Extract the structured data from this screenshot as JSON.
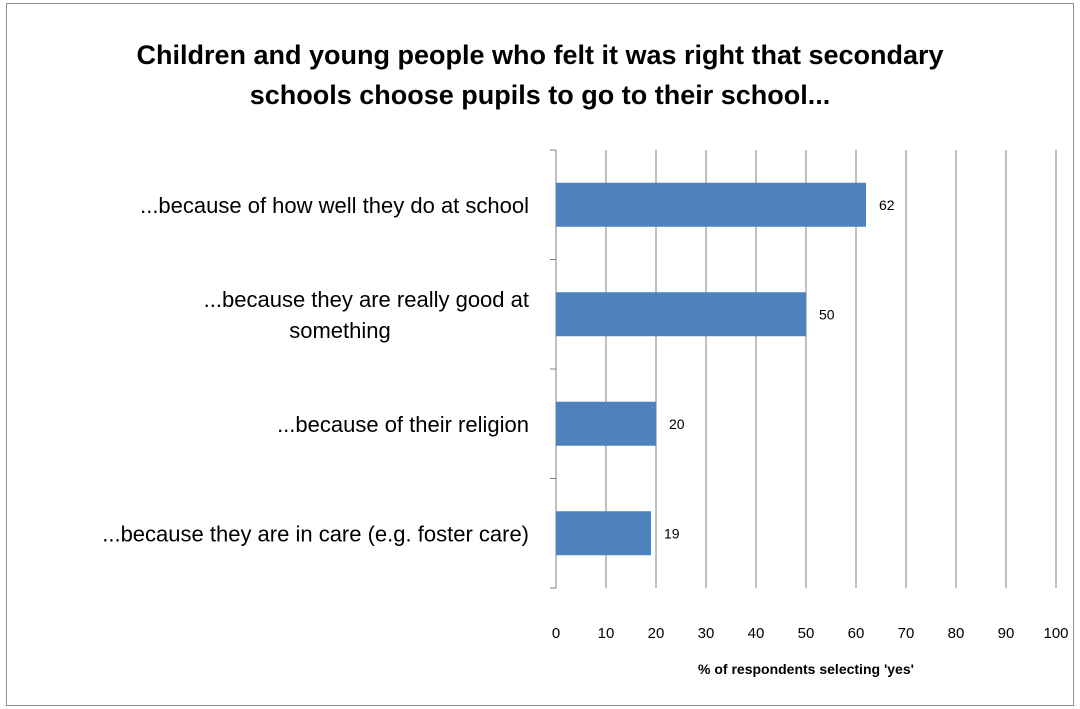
{
  "chart_data": {
    "type": "bar",
    "orientation": "horizontal",
    "title_lines": [
      "Children and young people who felt it was right that secondary",
      "schools choose pupils to go to their school..."
    ],
    "categories": [
      [
        "...because of how well they do at school"
      ],
      [
        "...because they are really good at",
        "something"
      ],
      [
        "...because of their religion"
      ],
      [
        "...because they are in care (e.g. foster care)"
      ]
    ],
    "values": [
      62,
      50,
      20,
      19
    ],
    "xlabel": "% of respondents selecting 'yes'",
    "xlim": [
      0,
      100
    ],
    "xticks": [
      0,
      10,
      20,
      30,
      40,
      50,
      60,
      70,
      80,
      90,
      100
    ],
    "grid": true,
    "legend": "none",
    "data_labels": true,
    "bar_color": "#4f81bd",
    "grid_color": "#808080"
  }
}
